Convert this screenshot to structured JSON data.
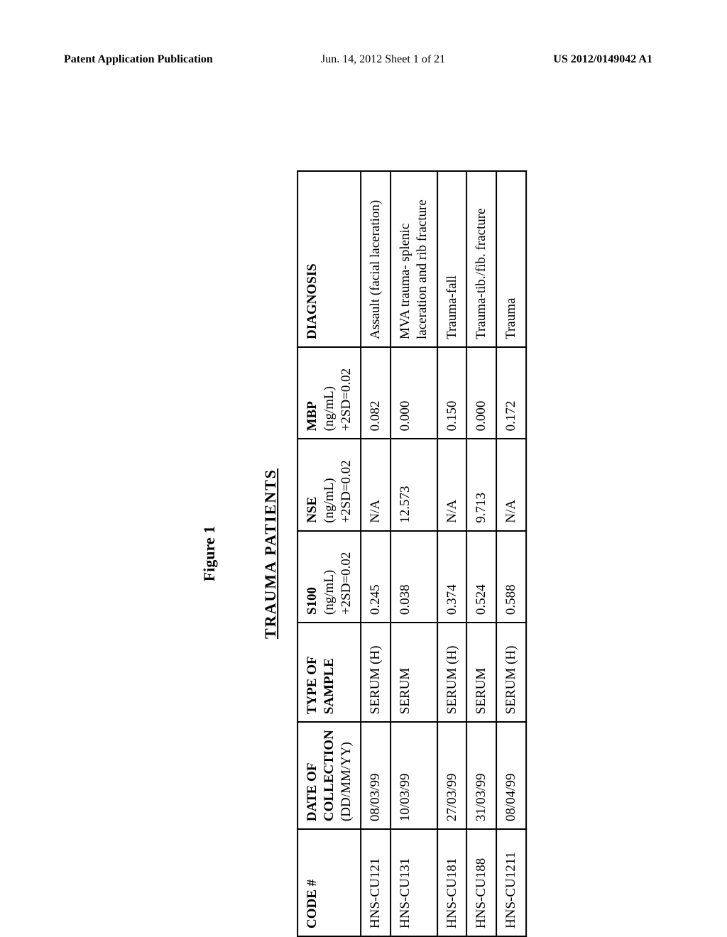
{
  "header": {
    "left": "Patent Application Publication",
    "center": "Jun. 14, 2012  Sheet 1 of 21",
    "right": "US 2012/0149042 A1"
  },
  "figure": {
    "label": "Figure 1",
    "title": "TRAUMA  PATIENTS"
  },
  "table": {
    "columns": [
      {
        "main": "CODE #",
        "sub1": "",
        "sub2": ""
      },
      {
        "main": "DATE OF",
        "sub1": "COLLECTION",
        "sub2": "(DD/MM/YY)"
      },
      {
        "main": "TYPE OF",
        "sub1": "SAMPLE",
        "sub2": ""
      },
      {
        "main": "S100",
        "sub1": "(ng/mL)",
        "sub2": "+2SD=0.02"
      },
      {
        "main": "NSE",
        "sub1": "(ng/mL)",
        "sub2": "+2SD=0.02"
      },
      {
        "main": "MBP",
        "sub1": "(ng/mL)",
        "sub2": "+2SD=0.02"
      },
      {
        "main": "DIAGNOSIS",
        "sub1": "",
        "sub2": ""
      }
    ],
    "rows": [
      [
        "HNS-CU121",
        "08/03/99",
        "SERUM (H)",
        "0.245",
        "N/A",
        "0.082",
        "Assault (facial laceration)"
      ],
      [
        "HNS-CU131",
        "10/03/99",
        "SERUM",
        "0.038",
        "12.573",
        "0.000",
        "MVA trauma- splenic laceration and rib fracture"
      ],
      [
        "HNS-CU181",
        "27/03/99",
        "SERUM (H)",
        "0.374",
        "N/A",
        "0.150",
        "Trauma-fall"
      ],
      [
        "HNS-CU188",
        "31/03/99",
        "SERUM",
        "0.524",
        "9.713",
        "0.000",
        "Trauma-tib./fib. fracture"
      ],
      [
        "HNS-CU1211",
        "08/04/99",
        "SERUM (H)",
        "0.588",
        "N/A",
        "0.172",
        "Trauma"
      ]
    ]
  }
}
